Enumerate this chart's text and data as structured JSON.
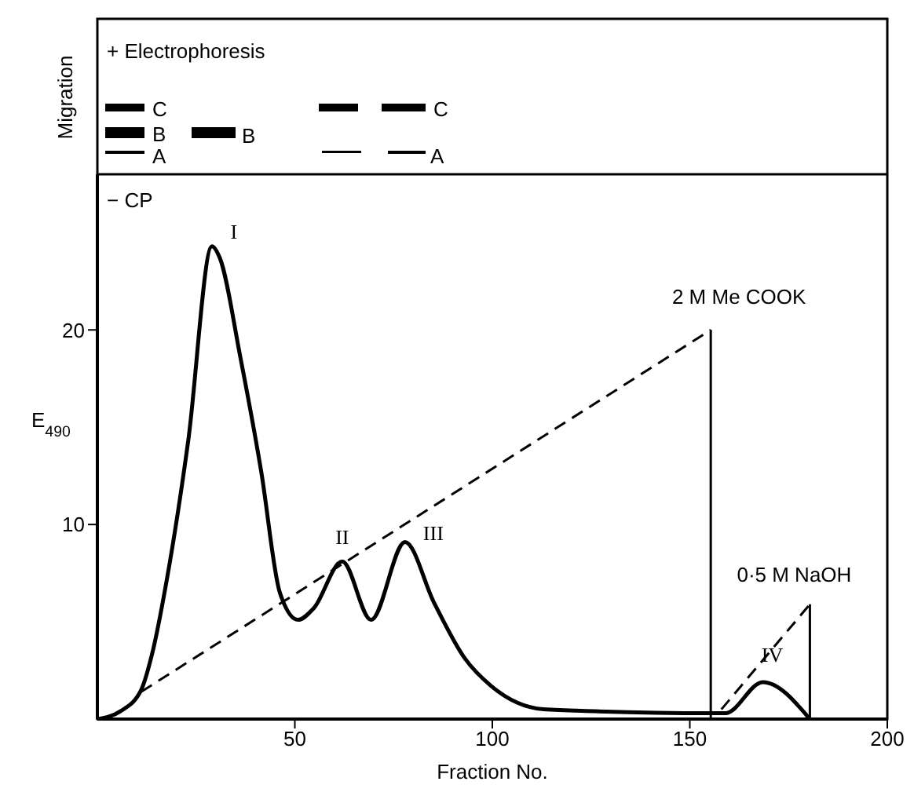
{
  "chart_data": {
    "type": "line",
    "xlabel": "Fraction No.",
    "ylabel": "E$_{490}$",
    "xlim": [
      0,
      200
    ],
    "xticks": [
      50,
      100,
      150,
      200
    ],
    "ylim": [
      0,
      28
    ],
    "yticks": [
      10,
      20
    ],
    "marker": "none",
    "series": [
      {
        "color": "#000000",
        "line_style": "solid",
        "x": [
          0,
          5.8,
          11.1,
          13.8,
          17.7,
          23,
          29,
          31,
          36.2,
          41.5,
          46.2,
          50.8,
          54.8,
          62,
          69.3,
          77.9,
          85.2,
          93.1,
          99.7,
          113,
          126,
          155,
          159,
          168.5,
          180.4
        ],
        "values": [
          0,
          0.4,
          1.5,
          3.3,
          7.3,
          14.3,
          24.3,
          23.7,
          18.6,
          12.7,
          6.5,
          5.1,
          5.7,
          8.1,
          5.1,
          9.1,
          6.0,
          3.1,
          1.7,
          0.5,
          0.4,
          0.3,
          0.3,
          1.9,
          0
        ]
      },
      {
        "color": "#000000",
        "line_style": "dashed",
        "x": [
          11.1,
          155.3
        ],
        "values": [
          1.4,
          20
        ]
      },
      {
        "color": "#000000",
        "line_style": "dashed",
        "x": [
          158,
          180.4
        ],
        "values": [
          0.5,
          5.9
        ]
      },
      {
        "color": "#000000",
        "line_style": "solid",
        "x": [
          155.3,
          155.3
        ],
        "values": [
          0,
          20
        ]
      },
      {
        "color": "#000000",
        "line_style": "solid",
        "x": [
          180.4,
          180.4
        ],
        "values": [
          0,
          5.9
        ]
      }
    ],
    "annotations": [
      "+ Electrophoresis",
      "Migration",
      "C",
      "B",
      "A",
      "B",
      "C",
      "A",
      "− CP",
      {
        "text": "I",
        "x": 29,
        "y": 24.3
      },
      {
        "text": "II",
        "x": 62,
        "y": 8.1
      },
      {
        "text": "III",
        "x": 77.9,
        "y": 9.1
      },
      {
        "text": "IV",
        "x": 168.5,
        "y": 1.9
      },
      {
        "text": "2 M Me COOK",
        "x": 155.3,
        "y": 20
      },
      {
        "text": "0·5 M NaOH",
        "x": 180.4,
        "y": 5.9
      }
    ]
  }
}
